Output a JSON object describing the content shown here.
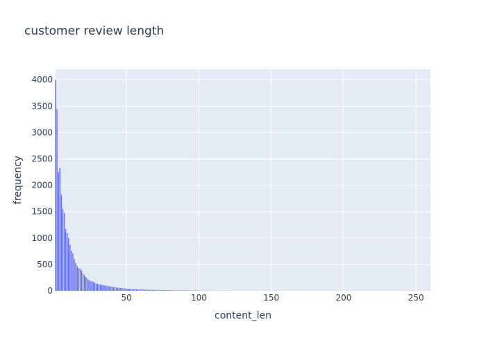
{
  "chart_data": {
    "type": "bar",
    "title": "customer review length",
    "xlabel": "content_len",
    "ylabel": "frequency",
    "xlim": [
      1,
      260
    ],
    "ylim": [
      0,
      4200
    ],
    "xticks": [
      50,
      100,
      150,
      200,
      250
    ],
    "yticks": [
      0,
      500,
      1000,
      1500,
      2000,
      2500,
      3000,
      3500,
      4000
    ],
    "bar_color": "#636efa",
    "plot_bg": "#e5ecf6",
    "grid": true,
    "x_start": 1,
    "values": [
      4000,
      3450,
      2250,
      2330,
      1820,
      1550,
      1480,
      1170,
      1100,
      1000,
      870,
      760,
      710,
      600,
      530,
      470,
      430,
      420,
      390,
      330,
      300,
      260,
      230,
      210,
      190,
      180,
      175,
      160,
      140,
      130,
      125,
      120,
      115,
      110,
      105,
      100,
      95,
      90,
      85,
      80,
      75,
      70,
      66,
      62,
      58,
      55,
      52,
      49,
      46,
      44,
      42,
      40,
      38,
      36,
      34,
      32,
      31,
      30,
      29,
      28,
      27,
      26,
      25,
      24,
      23,
      22,
      21,
      20,
      19,
      18,
      17,
      16,
      16,
      15,
      15,
      14,
      14,
      13,
      13,
      12,
      12,
      11,
      11,
      11,
      10,
      10,
      10,
      9,
      9,
      9,
      9,
      8,
      8,
      8,
      8,
      7,
      7,
      7,
      7,
      7,
      6,
      6,
      6,
      6,
      6,
      6,
      5,
      5,
      5,
      5,
      5,
      5,
      5,
      4,
      4,
      4,
      4,
      4,
      4,
      4,
      4,
      4,
      4,
      3,
      3,
      3,
      3,
      3,
      3,
      3,
      3,
      3,
      3,
      3,
      3,
      3,
      3,
      3,
      3,
      3,
      3,
      3,
      3,
      3,
      3,
      3,
      3,
      3,
      3,
      3,
      3,
      3,
      3,
      3,
      3,
      3,
      3,
      3,
      3,
      3,
      3,
      3,
      3,
      3,
      3,
      3,
      3,
      3,
      3,
      3,
      3,
      3,
      3,
      3,
      3,
      3,
      3,
      3,
      3,
      3,
      3,
      3,
      3,
      3,
      3,
      3,
      3,
      3,
      3,
      3,
      3,
      3,
      3,
      3,
      3,
      3,
      3,
      3,
      3,
      3,
      3,
      3,
      3,
      3,
      3,
      3,
      3,
      3,
      3,
      3,
      3,
      3,
      3,
      3,
      3,
      3,
      3,
      3,
      3,
      3,
      3,
      3,
      3,
      3,
      3,
      3,
      3,
      3,
      3,
      3,
      3,
      3,
      3,
      3,
      3,
      3,
      3,
      3,
      3,
      3,
      3,
      3,
      3,
      3,
      3,
      3,
      3,
      3,
      3,
      3,
      3,
      3,
      3,
      3,
      3,
      3,
      3,
      3,
      3,
      3,
      3,
      3,
      3,
      3,
      3
    ]
  }
}
